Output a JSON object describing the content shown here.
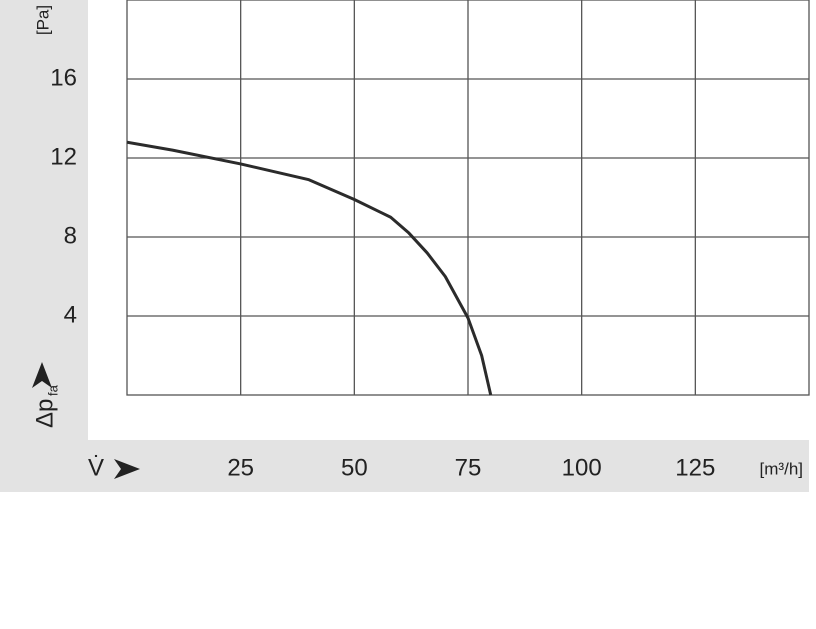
{
  "chart_data": {
    "type": "line",
    "y_unit": "[Pa]",
    "y_label": "Δp",
    "y_label_sub": "fa",
    "x_label": "V̇",
    "x_unit": "[m³/h]",
    "xlim": [
      0,
      150
    ],
    "xticks": [
      25,
      50,
      75,
      100,
      125
    ],
    "ylim": [
      0,
      20
    ],
    "yticks": [
      4,
      8,
      12,
      16
    ],
    "grid": true,
    "series": [
      {
        "color": "#2b2b2b",
        "x": [
          0,
          10,
          25,
          40,
          50,
          58,
          62,
          66,
          70,
          75,
          78,
          80
        ],
        "values": [
          12.8,
          12.4,
          11.7,
          10.9,
          9.9,
          9.0,
          8.2,
          7.2,
          6.0,
          3.9,
          2.0,
          0
        ]
      }
    ]
  }
}
